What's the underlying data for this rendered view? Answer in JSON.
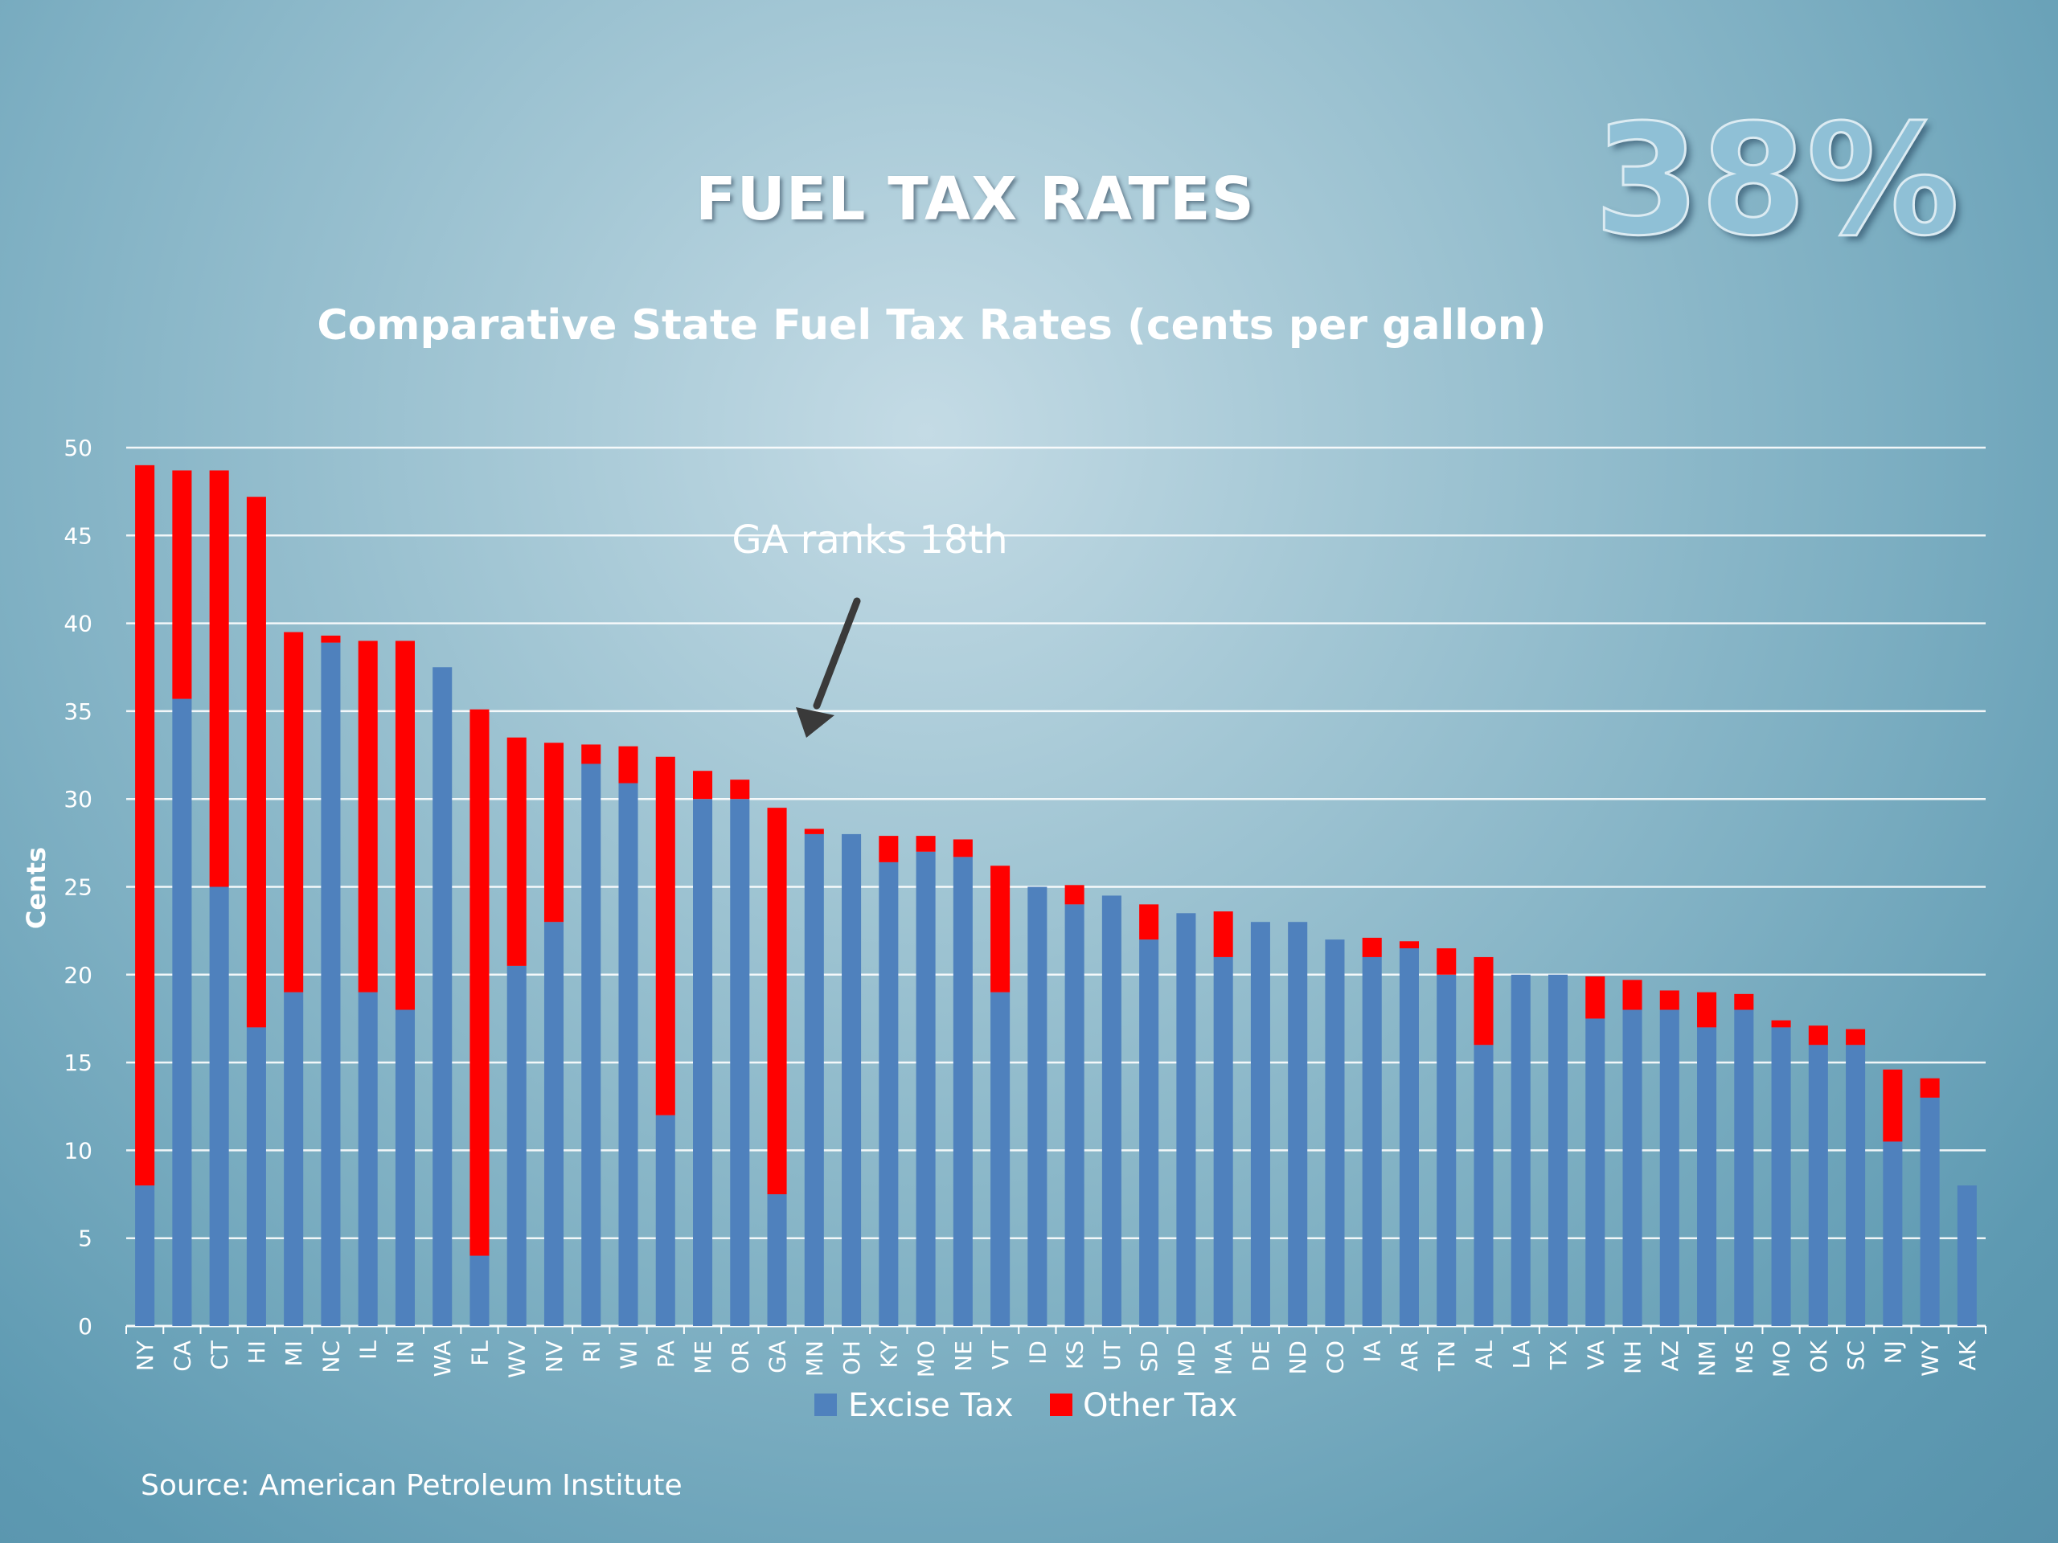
{
  "slide": {
    "title": "FUEL TAX RATES",
    "highlight": "38%",
    "source": "Source: American Petroleum Institute"
  },
  "chart_data": {
    "type": "bar",
    "stacked": true,
    "title": "Comparative State Fuel Tax Rates (cents per gallon)",
    "xlabel": "",
    "ylabel": "Cents",
    "ylim": [
      0,
      50
    ],
    "yticks": [
      0,
      5,
      10,
      15,
      20,
      25,
      30,
      35,
      40,
      45,
      50
    ],
    "grid": true,
    "legend_position": "bottom",
    "categories": [
      "NY",
      "CA",
      "CT",
      "HI",
      "MI",
      "NC",
      "IL",
      "IN",
      "WA",
      "FL",
      "WV",
      "NV",
      "RI",
      "WI",
      "PA",
      "ME",
      "OR",
      "GA",
      "MN",
      "OH",
      "KY",
      "MO",
      "NE",
      "VT",
      "ID",
      "KS",
      "UT",
      "SD",
      "MD",
      "MA",
      "DE",
      "ND",
      "CO",
      "IA",
      "AR",
      "TN",
      "AL",
      "LA",
      "TX",
      "VA",
      "NH",
      "AZ",
      "NM",
      "MS",
      "MO",
      "OK",
      "SC",
      "NJ",
      "WY",
      "AK"
    ],
    "series": [
      {
        "name": "Excise Tax",
        "color": "#4f81bd",
        "values": [
          8,
          35.7,
          25,
          17,
          19,
          38.9,
          19,
          18,
          37.5,
          4,
          20.5,
          23,
          32,
          30.9,
          12,
          30,
          30,
          7.5,
          28,
          28,
          26.4,
          27,
          26.7,
          19,
          25,
          24,
          24.5,
          22,
          23.5,
          21,
          23,
          23,
          22,
          21,
          21.5,
          20,
          16,
          20,
          20,
          17.5,
          18,
          18,
          17,
          18,
          17,
          16,
          16,
          10.5,
          13,
          8
        ]
      },
      {
        "name": "Other Tax",
        "color": "#ff0000",
        "values": [
          41,
          13,
          23.7,
          30.2,
          20.5,
          0.4,
          20,
          21,
          0,
          31.1,
          13,
          10.2,
          1.1,
          2.1,
          20.4,
          1.6,
          1.1,
          22,
          0.3,
          0,
          1.5,
          0.9,
          1,
          7.2,
          0,
          1.1,
          0,
          2,
          0,
          2.6,
          0,
          0,
          0,
          1.1,
          0.4,
          1.5,
          5,
          0,
          0,
          2.4,
          1.7,
          1.1,
          2,
          0.9,
          0.4,
          1.1,
          0.9,
          4.1,
          1.1,
          0
        ]
      }
    ],
    "annotation": {
      "text": "GA ranks 18th",
      "target_category": "GA"
    }
  }
}
